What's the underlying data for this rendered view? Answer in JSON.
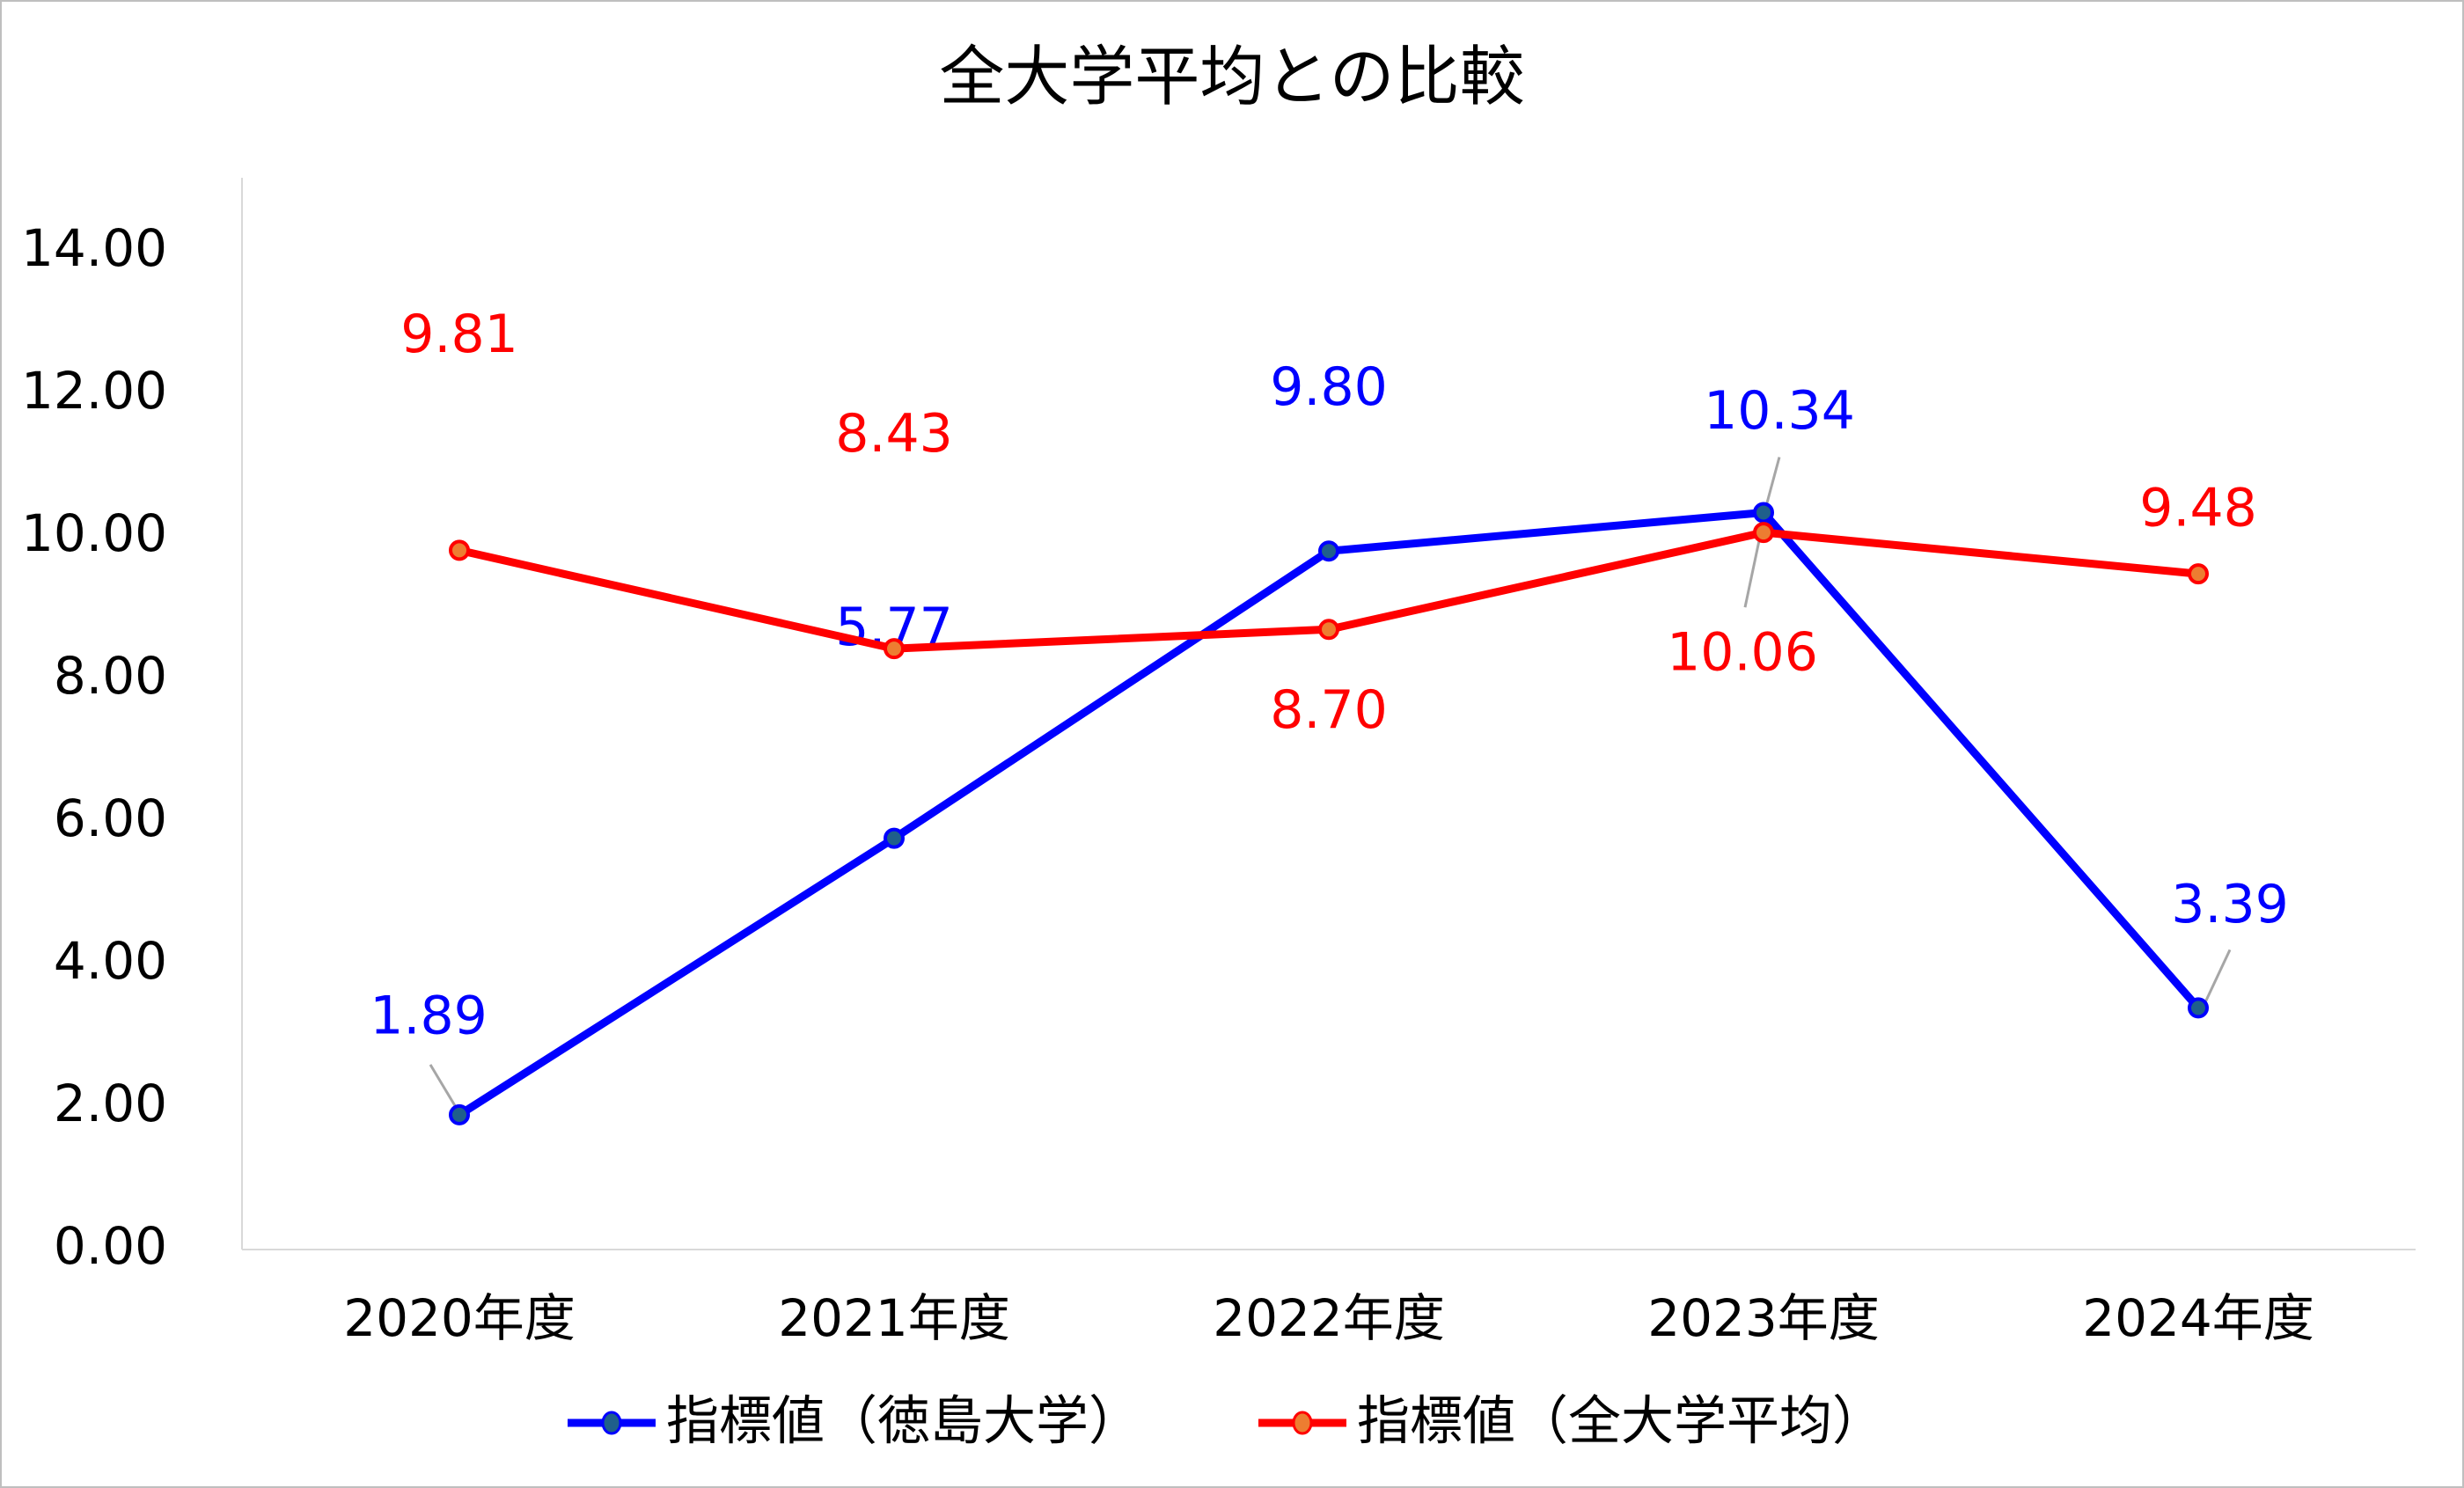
{
  "chart_data": {
    "type": "line",
    "title": "全大学平均との比較",
    "categories": [
      "2020年度",
      "2021年度",
      "2022年度",
      "2023年度",
      "2024年度"
    ],
    "series": [
      {
        "name": "指標値（徳島大学）",
        "values": [
          1.89,
          5.77,
          9.8,
          10.34,
          3.39
        ],
        "labels": [
          "1.89",
          "5.77",
          "9.80",
          "10.34",
          "3.39"
        ],
        "color": "#0000ff",
        "marker_fill": "#1f5f8b"
      },
      {
        "name": "指標値（全大学平均）",
        "values": [
          9.81,
          8.43,
          8.7,
          10.06,
          9.48
        ],
        "labels": [
          "9.81",
          "8.43",
          "8.70",
          "10.06",
          "9.48"
        ],
        "color": "#ff0000",
        "marker_fill": "#ed7d31"
      }
    ],
    "yticks": [
      "0.00",
      "2.00",
      "4.00",
      "6.00",
      "8.00",
      "10.00",
      "12.00",
      "14.00"
    ],
    "ylim": [
      0,
      14
    ],
    "grid": false,
    "legend": "bottom",
    "xlabel": "",
    "ylabel": ""
  }
}
